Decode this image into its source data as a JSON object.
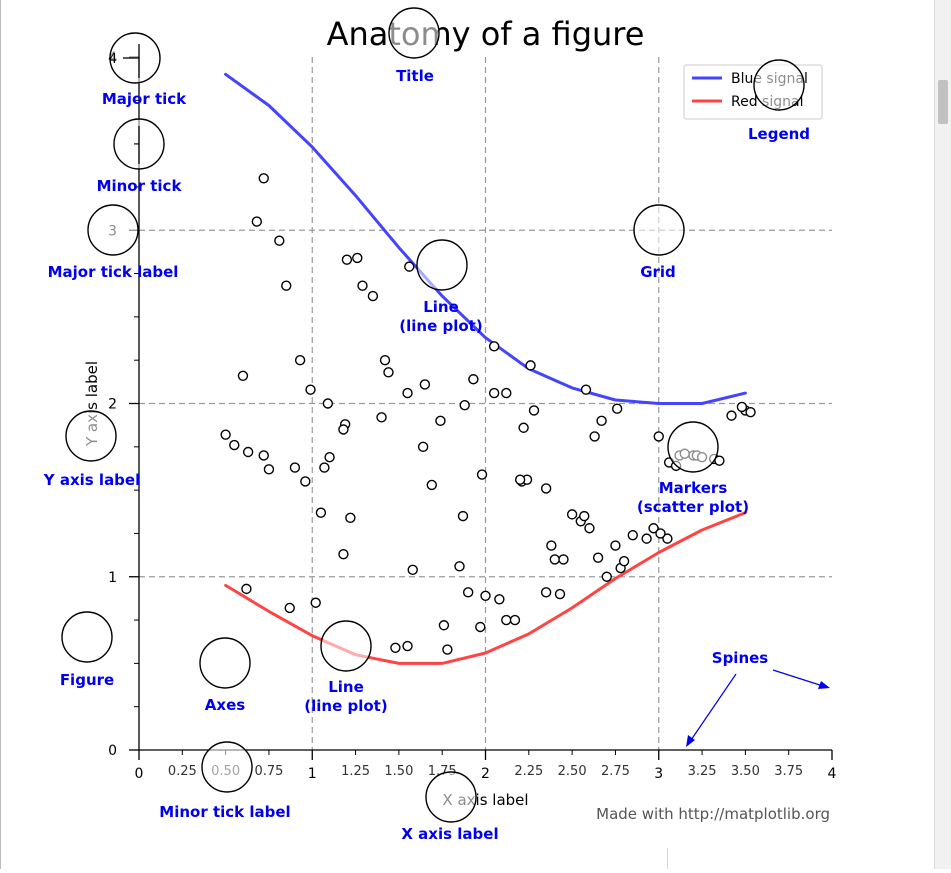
{
  "chart_data": {
    "type": "line+scatter",
    "title": "Anatomy of a figure",
    "xlabel": "X axis label",
    "ylabel": "Y axis label",
    "xlim": [
      0,
      4
    ],
    "ylim": [
      0,
      4
    ],
    "grid": true,
    "legend_position": "top-right",
    "major_xticks": [
      0,
      1,
      2,
      3,
      4
    ],
    "major_xtick_labels": [
      "0",
      "1",
      "2",
      "3",
      "4"
    ],
    "minor_xticks": [
      0.25,
      0.5,
      0.75,
      1.25,
      1.5,
      1.75,
      2.25,
      2.5,
      2.75,
      3.25,
      3.5,
      3.75
    ],
    "minor_xtick_labels": [
      "0.25",
      "0.50",
      "0.75",
      "1.25",
      "1.50",
      "1.75",
      "2.25",
      "2.50",
      "2.75",
      "3.25",
      "3.50",
      "3.75"
    ],
    "major_yticks": [
      0,
      1,
      2,
      3,
      4
    ],
    "major_ytick_labels": [
      "0",
      "1",
      "2",
      "3",
      "4"
    ],
    "minor_yticks": [
      0.25,
      0.5,
      0.75,
      1.25,
      1.5,
      1.75,
      2.25,
      2.5,
      2.75,
      3.25,
      3.5,
      3.75
    ],
    "series": [
      {
        "name": "Blue signal",
        "color": "#4444ff",
        "x": [
          0.5,
          0.75,
          1.0,
          1.25,
          1.5,
          1.75,
          2.0,
          2.25,
          2.5,
          2.75,
          3.0,
          3.25,
          3.5
        ],
        "y": [
          3.9,
          3.72,
          3.48,
          3.2,
          2.9,
          2.62,
          2.38,
          2.2,
          2.09,
          2.02,
          2.0,
          2.0,
          2.06
        ]
      },
      {
        "name": "Red signal",
        "color": "#ff4444",
        "x": [
          0.5,
          0.75,
          1.0,
          1.25,
          1.5,
          1.75,
          2.0,
          2.25,
          2.5,
          2.75,
          3.0,
          3.25,
          3.5
        ],
        "y": [
          0.95,
          0.8,
          0.66,
          0.55,
          0.5,
          0.5,
          0.56,
          0.67,
          0.82,
          0.99,
          1.14,
          1.27,
          1.37
        ]
      },
      {
        "name": "Markers",
        "type": "scatter",
        "x": [
          0.72,
          0.68,
          0.81,
          0.85,
          0.6,
          0.93,
          0.99,
          1.09,
          1.2,
          1.26,
          1.35,
          1.29,
          1.19,
          1.42,
          1.44,
          1.55,
          1.65,
          1.74,
          1.56,
          1.88,
          1.64,
          1.69,
          2.05,
          2.12,
          2.26,
          2.28,
          2.21,
          2.24,
          2.35,
          2.67,
          2.63,
          2.76,
          3.0,
          3.06,
          3.1,
          3.2,
          3.22,
          3.25,
          3.32,
          3.35,
          3.42,
          3.5,
          3.48,
          3.53,
          0.5,
          0.55,
          0.63,
          0.72,
          0.75,
          0.9,
          0.96,
          1.05,
          1.1,
          1.07,
          1.18,
          1.22,
          1.4,
          1.87,
          1.98,
          1.93,
          2.05,
          2.22,
          2.2,
          2.38,
          2.55,
          2.5,
          2.57,
          2.6,
          2.65,
          2.75,
          2.78,
          2.85,
          2.93,
          2.97,
          3.05,
          3.01,
          0.62,
          0.87,
          1.02,
          1.18,
          1.55,
          1.76,
          1.9,
          1.97,
          2.0,
          2.08,
          2.12,
          2.17,
          2.4,
          2.45,
          2.7,
          2.8,
          1.78,
          1.48,
          1.58,
          2.35,
          2.43,
          3.12,
          3.15,
          2.58,
          1.85
        ],
        "y": [
          3.3,
          3.05,
          2.94,
          2.68,
          2.16,
          2.25,
          2.08,
          2.0,
          2.83,
          2.84,
          2.62,
          2.68,
          1.88,
          2.25,
          2.18,
          2.06,
          2.11,
          1.9,
          2.79,
          1.99,
          1.75,
          1.53,
          2.33,
          2.06,
          2.22,
          1.96,
          1.55,
          1.56,
          1.51,
          1.9,
          1.81,
          1.97,
          1.81,
          1.66,
          1.64,
          1.7,
          1.7,
          1.69,
          1.68,
          1.67,
          1.93,
          1.96,
          1.98,
          1.95,
          1.82,
          1.76,
          1.72,
          1.7,
          1.62,
          1.63,
          1.55,
          1.37,
          1.69,
          1.63,
          1.85,
          1.34,
          1.92,
          1.35,
          1.59,
          2.14,
          2.06,
          1.86,
          1.56,
          1.18,
          1.32,
          1.36,
          1.35,
          1.28,
          1.11,
          1.18,
          1.05,
          1.24,
          1.22,
          1.28,
          1.22,
          1.25,
          0.93,
          0.82,
          0.85,
          1.13,
          0.6,
          0.72,
          0.91,
          0.71,
          0.89,
          0.87,
          0.75,
          0.75,
          1.1,
          1.1,
          1.0,
          1.09,
          0.58,
          0.59,
          1.04,
          0.91,
          0.9,
          1.7,
          1.71,
          2.08,
          1.06
        ]
      }
    ],
    "legend": [
      "Blue signal",
      "Red signal"
    ],
    "annotations": [
      "Major tick",
      "Minor tick",
      "Major tick label",
      "Y axis label",
      "Figure",
      "Axes",
      "Line\n(line plot)",
      "Line\n(line plot)",
      "Title",
      "Legend",
      "Grid",
      "Markers\n(scatter plot)",
      "Spines",
      "Minor tick label",
      "X axis label"
    ],
    "credit": "Made with http://matplotlib.org"
  }
}
